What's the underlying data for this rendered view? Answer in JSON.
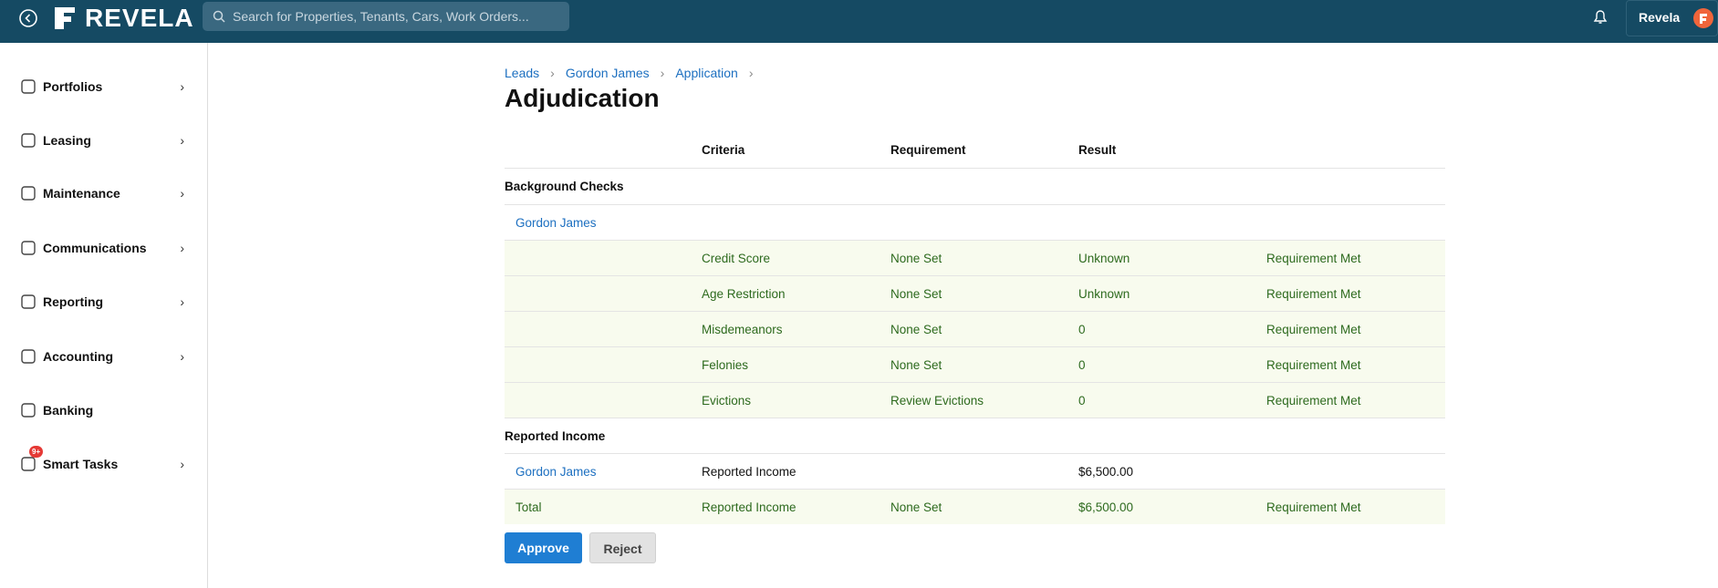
{
  "header": {
    "logo": "REVELA",
    "search_placeholder": "Search for Properties, Tenants, Cars, Work Orders...",
    "user": "Revela"
  },
  "sidebar": {
    "items": [
      {
        "label": "Portfolios",
        "has_children": true
      },
      {
        "label": "Leasing",
        "has_children": true
      },
      {
        "label": "Maintenance",
        "has_children": true
      },
      {
        "label": "Communications",
        "has_children": true
      },
      {
        "label": "Reporting",
        "has_children": true
      },
      {
        "label": "Accounting",
        "has_children": true
      },
      {
        "label": "Banking",
        "has_children": false
      },
      {
        "label": "Smart Tasks",
        "has_children": true,
        "badge": "9+"
      }
    ]
  },
  "breadcrumb": [
    "Leads",
    "Gordon James",
    "Application"
  ],
  "title": "Adjudication",
  "table": {
    "columns": [
      "Criteria",
      "Requirement",
      "Result"
    ],
    "sections": [
      {
        "title": "Background Checks",
        "rows": [
          {
            "name": "Gordon James"
          },
          {
            "criteria": "Credit Score",
            "requirement": "None Set",
            "result": "Unknown",
            "status": "Requirement Met",
            "highlight": true
          },
          {
            "criteria": "Age Restriction",
            "requirement": "None Set",
            "result": "Unknown",
            "status": "Requirement Met",
            "highlight": true
          },
          {
            "criteria": "Misdemeanors",
            "requirement": "None Set",
            "result": "0",
            "status": "Requirement Met",
            "highlight": true
          },
          {
            "criteria": "Felonies",
            "requirement": "None Set",
            "result": "0",
            "status": "Requirement Met",
            "highlight": true
          },
          {
            "criteria": "Evictions",
            "requirement": "Review Evictions",
            "result": "0",
            "status": "Requirement Met",
            "highlight": true
          }
        ]
      },
      {
        "title": "Reported Income",
        "rows": [
          {
            "name": "Gordon James",
            "criteria": "Reported Income",
            "result": "$6,500.00"
          },
          {
            "total": "Total",
            "criteria": "Reported Income",
            "requirement": "None Set",
            "result": "$6,500.00",
            "status": "Requirement Met",
            "highlight": true
          }
        ]
      }
    ]
  },
  "buttons": {
    "approve": "Approve",
    "reject": "Reject"
  }
}
